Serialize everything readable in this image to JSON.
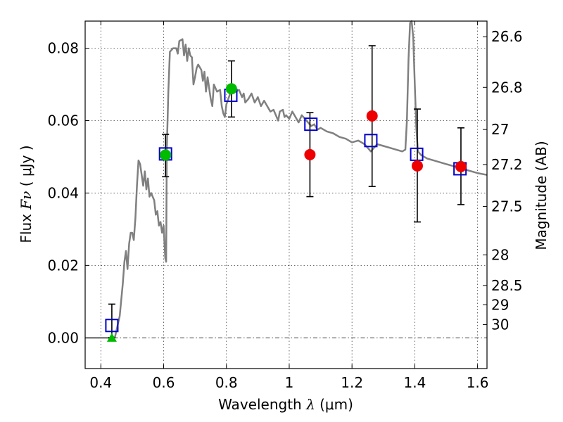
{
  "chart_data": {
    "type": "scatter",
    "xlabel_prefix": "Wavelength",
    "xlabel_symbol": "λ",
    "xlabel_unit": "(μm)",
    "ylabel_prefix": "Flux",
    "ylabel_symbol": "Fν",
    "ylabel_unit": "( μJy )",
    "y2label": "Magnitude (AB)",
    "xlim": [
      0.35,
      1.63
    ],
    "ylim": [
      -0.0085,
      0.0875
    ],
    "x_ticks": [
      0.4,
      0.6,
      0.8,
      1.0,
      1.2,
      1.4,
      1.6
    ],
    "x_tick_labels": [
      "0.4",
      "0.6",
      "0.8",
      "1",
      "1.2",
      "1.4",
      "1.6"
    ],
    "y_ticks": [
      0.0,
      0.02,
      0.04,
      0.06,
      0.08
    ],
    "y_tick_labels": [
      "0.00",
      "0.02",
      "0.04",
      "0.06",
      "0.08"
    ],
    "mag_ticks": [
      {
        "mag": 26.6,
        "label": "26.6"
      },
      {
        "mag": 26.8,
        "label": "26.8"
      },
      {
        "mag": 27.0,
        "label": "27"
      },
      {
        "mag": 27.2,
        "label": "27.2"
      },
      {
        "mag": 27.5,
        "label": "27.5"
      },
      {
        "mag": 28.0,
        "label": "28"
      },
      {
        "mag": 28.5,
        "label": "28.5"
      },
      {
        "mag": 29.0,
        "label": "29"
      },
      {
        "mag": 30.0,
        "label": "30"
      }
    ],
    "grid": true,
    "zero_line": true,
    "model_spectrum": [
      [
        0.35,
        0.0
      ],
      [
        0.43,
        0.0
      ],
      [
        0.445,
        0.0002
      ],
      [
        0.46,
        0.006
      ],
      [
        0.47,
        0.015
      ],
      [
        0.475,
        0.021
      ],
      [
        0.48,
        0.024
      ],
      [
        0.485,
        0.019
      ],
      [
        0.49,
        0.026
      ],
      [
        0.495,
        0.029
      ],
      [
        0.5,
        0.029
      ],
      [
        0.505,
        0.027
      ],
      [
        0.51,
        0.033
      ],
      [
        0.515,
        0.042
      ],
      [
        0.52,
        0.049
      ],
      [
        0.525,
        0.048
      ],
      [
        0.53,
        0.045
      ],
      [
        0.535,
        0.042
      ],
      [
        0.54,
        0.046
      ],
      [
        0.545,
        0.041
      ],
      [
        0.55,
        0.044
      ],
      [
        0.555,
        0.039
      ],
      [
        0.56,
        0.04
      ],
      [
        0.57,
        0.038
      ],
      [
        0.575,
        0.034
      ],
      [
        0.58,
        0.035
      ],
      [
        0.585,
        0.031
      ],
      [
        0.59,
        0.032
      ],
      [
        0.595,
        0.029
      ],
      [
        0.6,
        0.031
      ],
      [
        0.605,
        0.022
      ],
      [
        0.608,
        0.021
      ],
      [
        0.61,
        0.052
      ],
      [
        0.615,
        0.068
      ],
      [
        0.62,
        0.079
      ],
      [
        0.63,
        0.08
      ],
      [
        0.64,
        0.08
      ],
      [
        0.645,
        0.0785
      ],
      [
        0.65,
        0.082
      ],
      [
        0.66,
        0.0825
      ],
      [
        0.665,
        0.078
      ],
      [
        0.67,
        0.081
      ],
      [
        0.675,
        0.0765
      ],
      [
        0.68,
        0.08
      ],
      [
        0.685,
        0.078
      ],
      [
        0.69,
        0.0775
      ],
      [
        0.695,
        0.07
      ],
      [
        0.7,
        0.072
      ],
      [
        0.705,
        0.0745
      ],
      [
        0.71,
        0.0755
      ],
      [
        0.72,
        0.074
      ],
      [
        0.725,
        0.071
      ],
      [
        0.73,
        0.0735
      ],
      [
        0.735,
        0.068
      ],
      [
        0.74,
        0.072
      ],
      [
        0.745,
        0.069
      ],
      [
        0.75,
        0.066
      ],
      [
        0.755,
        0.064
      ],
      [
        0.76,
        0.07
      ],
      [
        0.77,
        0.068
      ],
      [
        0.78,
        0.0685
      ],
      [
        0.785,
        0.064
      ],
      [
        0.79,
        0.062
      ],
      [
        0.795,
        0.061
      ],
      [
        0.8,
        0.0645
      ],
      [
        0.81,
        0.067
      ],
      [
        0.815,
        0.0695
      ],
      [
        0.82,
        0.069
      ],
      [
        0.83,
        0.068
      ],
      [
        0.84,
        0.0685
      ],
      [
        0.85,
        0.0665
      ],
      [
        0.855,
        0.0675
      ],
      [
        0.86,
        0.065
      ],
      [
        0.87,
        0.066
      ],
      [
        0.88,
        0.0675
      ],
      [
        0.89,
        0.065
      ],
      [
        0.9,
        0.0665
      ],
      [
        0.91,
        0.064
      ],
      [
        0.92,
        0.0655
      ],
      [
        0.93,
        0.064
      ],
      [
        0.94,
        0.0625
      ],
      [
        0.95,
        0.063
      ],
      [
        0.96,
        0.061
      ],
      [
        0.965,
        0.06
      ],
      [
        0.97,
        0.0625
      ],
      [
        0.98,
        0.063
      ],
      [
        0.985,
        0.061
      ],
      [
        0.99,
        0.0615
      ],
      [
        1.0,
        0.0605
      ],
      [
        1.01,
        0.0625
      ],
      [
        1.02,
        0.061
      ],
      [
        1.03,
        0.0595
      ],
      [
        1.04,
        0.0615
      ],
      [
        1.05,
        0.0605
      ],
      [
        1.06,
        0.0595
      ],
      [
        1.07,
        0.0585
      ],
      [
        1.08,
        0.059
      ],
      [
        1.09,
        0.0575
      ],
      [
        1.1,
        0.058
      ],
      [
        1.12,
        0.057
      ],
      [
        1.14,
        0.0565
      ],
      [
        1.16,
        0.0555
      ],
      [
        1.18,
        0.055
      ],
      [
        1.2,
        0.054
      ],
      [
        1.22,
        0.0545
      ],
      [
        1.24,
        0.0535
      ],
      [
        1.255,
        0.052
      ],
      [
        1.26,
        0.0515
      ],
      [
        1.265,
        0.052
      ],
      [
        1.28,
        0.0535
      ],
      [
        1.3,
        0.053
      ],
      [
        1.32,
        0.0525
      ],
      [
        1.34,
        0.052
      ],
      [
        1.36,
        0.0515
      ],
      [
        1.37,
        0.052
      ],
      [
        1.375,
        0.06
      ],
      [
        1.38,
        0.077
      ],
      [
        1.385,
        0.087
      ],
      [
        1.39,
        0.0875
      ],
      [
        1.395,
        0.083
      ],
      [
        1.4,
        0.07
      ],
      [
        1.405,
        0.058
      ],
      [
        1.41,
        0.0515
      ],
      [
        1.42,
        0.0505
      ],
      [
        1.44,
        0.0495
      ],
      [
        1.46,
        0.049
      ],
      [
        1.48,
        0.0485
      ],
      [
        1.5,
        0.048
      ],
      [
        1.52,
        0.0475
      ],
      [
        1.54,
        0.047
      ],
      [
        1.56,
        0.0465
      ],
      [
        1.58,
        0.046
      ],
      [
        1.6,
        0.0455
      ],
      [
        1.63,
        0.045
      ]
    ],
    "model_photometry": [
      {
        "x": 0.435,
        "y": 0.0034
      },
      {
        "x": 0.606,
        "y": 0.0508
      },
      {
        "x": 0.814,
        "y": 0.067
      },
      {
        "x": 1.069,
        "y": 0.059
      },
      {
        "x": 1.26,
        "y": 0.0545
      },
      {
        "x": 1.406,
        "y": 0.0507
      },
      {
        "x": 1.544,
        "y": 0.0467
      }
    ],
    "measurements": [
      {
        "x": 0.435,
        "y": 0.0,
        "err_low": 0.0,
        "err_high": 0.0093,
        "marker": "triangle",
        "color": "#00bb00",
        "err_color": "#000000"
      },
      {
        "x": 0.606,
        "y": 0.0505,
        "err_low": 0.0445,
        "err_high": 0.0562,
        "marker": "circle",
        "color": "#00bb00",
        "err_color": "#000000"
      },
      {
        "x": 0.816,
        "y": 0.0688,
        "err_low": 0.061,
        "err_high": 0.0765,
        "marker": "circle",
        "color": "#00bb00",
        "err_color": "#000000"
      },
      {
        "x": 1.066,
        "y": 0.0506,
        "err_low": 0.039,
        "err_high": 0.0622,
        "marker": "circle",
        "color": "#ee0000",
        "err_color": "#000000"
      },
      {
        "x": 1.264,
        "y": 0.0613,
        "err_low": 0.0418,
        "err_high": 0.0807,
        "marker": "circle",
        "color": "#ee0000",
        "err_color": "#000000"
      },
      {
        "x": 1.408,
        "y": 0.0475,
        "err_low": 0.032,
        "err_high": 0.0632,
        "marker": "circle",
        "color": "#ee0000",
        "err_color": "#000000"
      },
      {
        "x": 1.547,
        "y": 0.0473,
        "err_low": 0.0368,
        "err_high": 0.058,
        "marker": "circle",
        "color": "#ee0000",
        "err_color": "#000000"
      }
    ]
  }
}
